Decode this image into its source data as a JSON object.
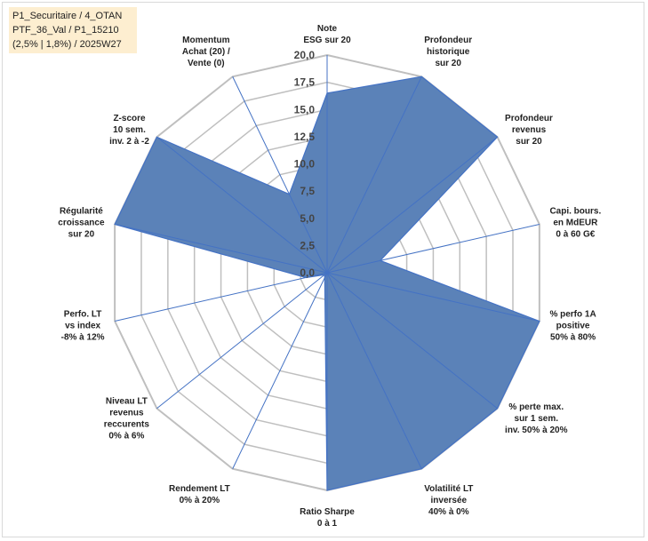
{
  "info_box": {
    "line1": "P1_Securitaire / 4_OTAN",
    "line2": "PTF_36_Val / P1_15210",
    "line3": "(2,5% | 1,8%) / 2025W27"
  },
  "colors": {
    "fill": "#5b82b8",
    "stroke": "#4472c4",
    "grid": "#bfbfbf",
    "info_bg": "#fdeed0"
  },
  "chart_data": {
    "type": "radar",
    "title": "",
    "rlim": [
      0,
      20
    ],
    "tick_step": 2.5,
    "tick_labels": [
      "0,0",
      "2,5",
      "5,0",
      "7,5",
      "10,0",
      "12,5",
      "15,0",
      "17,5",
      "20,0"
    ],
    "axes": [
      [
        "Note",
        "ESG sur 20"
      ],
      [
        "Profondeur",
        "historique",
        "sur 20"
      ],
      [
        "Profondeur",
        "revenus",
        "sur 20"
      ],
      [
        "Capi. bours.",
        "en MdEUR",
        "0 à 60 G€"
      ],
      [
        "% perfo 1A",
        "positive",
        "50% à 80%"
      ],
      [
        "% perte max.",
        "sur 1 sem.",
        "inv. 50% à 20%"
      ],
      [
        "Volatilité LT",
        "inversée",
        "40% à 0%"
      ],
      [
        "Ratio Sharpe",
        "0 à 1"
      ],
      [
        "Rendement LT",
        "0% à 20%"
      ],
      [
        "Niveau LT",
        "revenus",
        "reccurents",
        "0% à 6%"
      ],
      [
        "Perfo. LT",
        "vs index",
        "-8% à 12%"
      ],
      [
        "Régularité",
        "croissance",
        "sur 20"
      ],
      [
        "Z-score",
        "10 sem.",
        "inv. 2 à -2"
      ],
      [
        "Momentum",
        "Achat (20) /",
        "Vente (0)"
      ]
    ],
    "series": [
      {
        "values": [
          16.5,
          20,
          20,
          5,
          20,
          20,
          20,
          20,
          0.5,
          0.3,
          2,
          20,
          20,
          8
        ]
      }
    ],
    "grid": true,
    "legend": "none"
  }
}
